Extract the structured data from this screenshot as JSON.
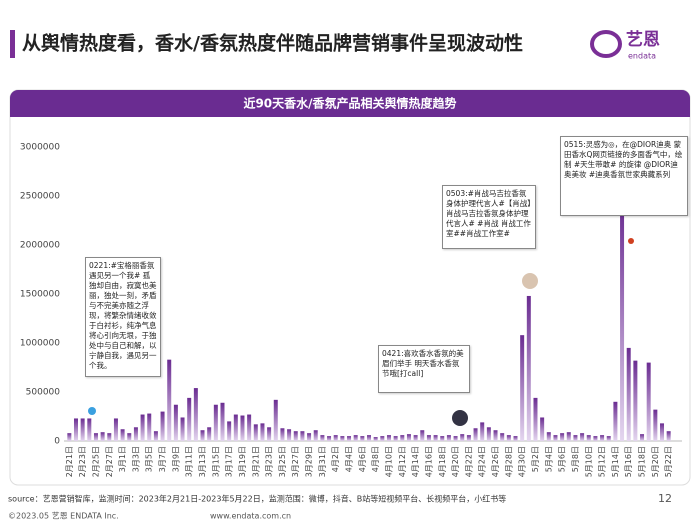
{
  "header": {
    "title": "从舆情热度看，香水/香氛热度伴随品牌营销事件呈现波动性",
    "logo_cn": "艺恩",
    "logo_en": "endata"
  },
  "chart_data": {
    "type": "bar",
    "title": "近90天香水/香氛产品相关舆情热度趋势",
    "color": "#6a2c91",
    "grid": false,
    "categories": [
      "2月21日",
      null,
      "2月23日",
      null,
      "2月25日",
      null,
      "2月27日",
      null,
      "3月1日",
      null,
      "3月3日",
      null,
      "3月5日",
      null,
      "3月7日",
      null,
      "3月9日",
      null,
      "3月11日",
      null,
      "3月13日",
      null,
      "3月15日",
      null,
      "3月17日",
      null,
      "3月19日",
      null,
      "3月21日",
      null,
      "3月23日",
      null,
      "3月25日",
      null,
      "3月27日",
      null,
      "3月29日",
      null,
      "3月31日",
      null,
      "4月2日",
      null,
      "4月4日",
      null,
      "4月6日",
      null,
      "4月8日",
      null,
      "4月10日",
      null,
      "4月12日",
      null,
      "4月14日",
      null,
      "4月16日",
      null,
      "4月18日",
      null,
      "4月20日",
      null,
      "4月22日",
      null,
      "4月24日",
      null,
      "4月26日",
      null,
      "4月28日",
      null,
      "4月30日",
      null,
      "5月2日",
      null,
      "5月4日",
      null,
      "5月6日",
      null,
      "5月8日",
      null,
      "5月10日",
      null,
      "5月12日",
      null,
      "5月14日",
      null,
      "5月16日",
      null,
      "5月18日",
      null,
      "5月20日",
      null,
      "5月22日"
    ],
    "values": [
      80000,
      230000,
      230000,
      230000,
      80000,
      90000,
      80000,
      230000,
      120000,
      80000,
      140000,
      270000,
      280000,
      100000,
      300000,
      830000,
      370000,
      240000,
      440000,
      540000,
      110000,
      140000,
      370000,
      390000,
      200000,
      270000,
      260000,
      270000,
      170000,
      180000,
      140000,
      420000,
      130000,
      120000,
      100000,
      100000,
      80000,
      110000,
      60000,
      50000,
      60000,
      50000,
      50000,
      60000,
      50000,
      60000,
      40000,
      50000,
      60000,
      50000,
      60000,
      70000,
      60000,
      110000,
      60000,
      60000,
      50000,
      60000,
      50000,
      70000,
      60000,
      130000,
      190000,
      140000,
      110000,
      80000,
      60000,
      50000,
      1080000,
      1480000,
      440000,
      240000,
      90000,
      60000,
      80000,
      90000,
      60000,
      80000,
      60000,
      50000,
      60000,
      50000,
      400000,
      2420000,
      950000,
      820000,
      70000,
      800000,
      320000,
      180000,
      100000
    ],
    "ylim": [
      0,
      3000000
    ],
    "yticks": [
      0,
      500000,
      1000000,
      1500000,
      2000000,
      2500000,
      3000000
    ],
    "annotations": [
      "0221:#宝格丽香氛遇见另一个我# 孤独却自由，寂寞也美丽，独处一刻，矛盾与不完美亦随之浮现，将繁杂情绪收敛于白衬衫，纯净气息将心引向无垠，于独处中与自己和解，以宁静自我，遇见另一个我。",
      "0421:喜欢香水香氛的美眉们举手 明天香水香氛节哦[打call]",
      "0503:#肖战马吉拉香氛身体护理代言人#【肖战】肖战马吉拉香氛身体护理代言人# #肖战 肖战工作室##肖战工作室#",
      "0515:灵感为◎，在@DIOR迪奥 蒙田香水Q网页链接的多面香气中，绘制 #天生带敢# 的旋律 @DIOR迪奥美妆 #迪奥香氛世家典藏系列"
    ]
  },
  "footer": {
    "source": "source：艺恩营销智库，监测时间：2023年2月21日-2023年5月22日，监测范围：微博，抖音、B站等短视频平台、长视频平台，小红书等",
    "page": "12",
    "copyright": "©2023.05 艺恩 ENDATA Inc.",
    "website": "www.endata.com.cn"
  }
}
